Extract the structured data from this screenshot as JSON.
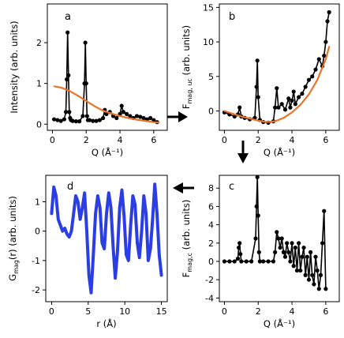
{
  "chart_data": [
    {
      "panel": "a",
      "type": "line",
      "xlabel": "Q (Å⁻¹)",
      "ylabel": "Intensity (arb. units)",
      "xlim": [
        -0.3,
        6.8
      ],
      "ylim": [
        -0.15,
        2.95
      ],
      "xticks": [
        "0",
        "2",
        "4",
        "6"
      ],
      "yticks": [
        "0",
        "1",
        "2"
      ],
      "series": [
        {
          "color": "#000000",
          "marker": true,
          "x": [
            0.1,
            0.3,
            0.5,
            0.7,
            0.8,
            0.85,
            0.9,
            0.95,
            1.0,
            1.05,
            1.1,
            1.2,
            1.4,
            1.6,
            1.8,
            1.9,
            1.95,
            2.0,
            2.05,
            2.1,
            2.2,
            2.4,
            2.6,
            2.8,
            3.0,
            3.1,
            3.2,
            3.4,
            3.6,
            3.8,
            4.0,
            4.1,
            4.2,
            4.4,
            4.6,
            4.8,
            5.0,
            5.2,
            5.4,
            5.6,
            5.8,
            6.0,
            6.2
          ],
          "y": [
            0.12,
            0.1,
            0.08,
            0.12,
            0.3,
            1.1,
            2.25,
            1.2,
            0.3,
            0.15,
            0.1,
            0.08,
            0.07,
            0.07,
            0.2,
            1.0,
            2.0,
            1.0,
            0.2,
            0.1,
            0.1,
            0.08,
            0.08,
            0.1,
            0.15,
            0.35,
            0.25,
            0.3,
            0.2,
            0.15,
            0.25,
            0.45,
            0.3,
            0.25,
            0.2,
            0.15,
            0.2,
            0.18,
            0.15,
            0.12,
            0.15,
            0.1,
            0.05
          ]
        },
        {
          "color": "#e8742a",
          "marker": false,
          "x": [
            0.1,
            0.5,
            1.0,
            1.5,
            2.0,
            2.5,
            3.0,
            3.5,
            4.0,
            4.5,
            5.0,
            5.5,
            6.0,
            6.3
          ],
          "y": [
            0.93,
            0.9,
            0.82,
            0.7,
            0.57,
            0.44,
            0.33,
            0.26,
            0.2,
            0.15,
            0.11,
            0.08,
            0.05,
            0.04
          ]
        }
      ]
    },
    {
      "panel": "b",
      "type": "line",
      "xlabel": "Q (Å⁻¹)",
      "ylabel": "Fmag, uc (arb. units)",
      "ylabel_main": "F",
      "ylabel_sub": "mag, uc",
      "ylabel_rest": " (arb. units)",
      "xlim": [
        -0.3,
        6.8
      ],
      "ylim": [
        -2.8,
        15.5
      ],
      "xticks": [
        "0",
        "2",
        "4",
        "6"
      ],
      "yticks": [
        "0",
        "5",
        "10",
        "15"
      ],
      "series": [
        {
          "color": "#000000",
          "marker": true,
          "x": [
            0.0,
            0.3,
            0.6,
            0.8,
            0.9,
            1.0,
            1.2,
            1.5,
            1.8,
            1.9,
            1.95,
            2.0,
            2.1,
            2.3,
            2.6,
            2.9,
            3.0,
            3.1,
            3.2,
            3.4,
            3.6,
            3.8,
            3.9,
            4.0,
            4.1,
            4.2,
            4.4,
            4.6,
            4.8,
            5.0,
            5.2,
            5.4,
            5.6,
            5.8,
            5.9,
            6.0,
            6.1,
            6.2
          ],
          "y": [
            -0.2,
            -0.5,
            -0.8,
            -0.5,
            0.5,
            -0.8,
            -1.0,
            -1.2,
            -1.0,
            3.5,
            7.3,
            2.0,
            -1.3,
            -1.6,
            -1.7,
            -1.5,
            0.5,
            3.3,
            0.5,
            1.0,
            0.2,
            1.8,
            0.5,
            1.5,
            2.8,
            1.0,
            2.0,
            2.5,
            3.5,
            4.5,
            5.0,
            6.0,
            7.5,
            6.5,
            8.0,
            10.0,
            13.0,
            14.3
          ]
        },
        {
          "color": "#e8742a",
          "marker": false,
          "x": [
            0.0,
            0.5,
            1.0,
            1.5,
            2.0,
            2.5,
            3.0,
            3.5,
            4.0,
            4.5,
            5.0,
            5.5,
            6.0,
            6.2
          ],
          "y": [
            0.0,
            -0.4,
            -0.8,
            -1.1,
            -1.4,
            -1.6,
            -1.5,
            -1.0,
            -0.2,
            0.9,
            2.4,
            4.5,
            7.5,
            9.3
          ]
        }
      ]
    },
    {
      "panel": "c",
      "type": "line",
      "xlabel": "Q (Å⁻¹)",
      "ylabel": "Fmag,c (arb. units)",
      "ylabel_main": "F",
      "ylabel_sub": "mag,c",
      "ylabel_rest": " (arb. units)",
      "xlim": [
        -0.3,
        6.8
      ],
      "ylim": [
        -4.4,
        9.4
      ],
      "xticks": [
        "0",
        "2",
        "4",
        "6"
      ],
      "yticks": [
        "-4",
        "-2",
        "0",
        "2",
        "4",
        "6",
        "8"
      ],
      "series": [
        {
          "color": "#000000",
          "marker": true,
          "x": [
            0.0,
            0.3,
            0.6,
            0.8,
            0.85,
            0.9,
            0.95,
            1.0,
            1.3,
            1.6,
            1.85,
            1.9,
            1.95,
            2.0,
            2.05,
            2.1,
            2.3,
            2.6,
            2.9,
            3.0,
            3.1,
            3.2,
            3.3,
            3.4,
            3.5,
            3.6,
            3.7,
            3.8,
            3.9,
            4.0,
            4.1,
            4.2,
            4.3,
            4.4,
            4.5,
            4.6,
            4.7,
            4.8,
            4.9,
            5.0,
            5.1,
            5.2,
            5.3,
            5.4,
            5.5,
            5.6,
            5.7,
            5.8,
            5.9,
            6.0
          ],
          "y": [
            0.0,
            0.0,
            0.0,
            0.3,
            1.5,
            2.0,
            0.8,
            0.0,
            0.0,
            0.0,
            2.5,
            6.0,
            9.2,
            5.0,
            1.0,
            0.0,
            0.0,
            0.0,
            0.0,
            1.0,
            3.2,
            2.5,
            1.5,
            2.5,
            1.0,
            0.5,
            2.0,
            1.0,
            0.0,
            2.0,
            -0.5,
            1.5,
            -1.0,
            2.0,
            -1.0,
            0.5,
            1.5,
            -1.5,
            0.5,
            -2.0,
            1.0,
            -1.5,
            -2.5,
            0.5,
            -1.0,
            -3.0,
            -1.5,
            2.0,
            5.5,
            -3.0
          ]
        }
      ]
    },
    {
      "panel": "d",
      "type": "line",
      "xlabel": "r (Å)",
      "ylabel": "Gmag(r) (arb. units)",
      "ylabel_main": "G",
      "ylabel_sub": "mag",
      "ylabel_rest": "(r) (arb. units)",
      "xlim": [
        -0.8,
        15.8
      ],
      "ylim": [
        -2.4,
        1.9
      ],
      "xticks": [
        "0",
        "5",
        "10",
        "15"
      ],
      "yticks": [
        "-2",
        "-1",
        "0",
        "1"
      ],
      "series": [
        {
          "color": "#2b3ee6",
          "marker": false,
          "x": [
            0.0,
            0.3,
            0.6,
            0.9,
            1.2,
            1.5,
            1.8,
            2.1,
            2.4,
            2.7,
            3.0,
            3.3,
            3.6,
            3.9,
            4.2,
            4.5,
            4.8,
            5.1,
            5.4,
            5.7,
            6.0,
            6.3,
            6.6,
            6.9,
            7.2,
            7.5,
            7.8,
            8.1,
            8.4,
            8.7,
            9.0,
            9.3,
            9.6,
            9.9,
            10.2,
            10.5,
            10.8,
            11.1,
            11.4,
            11.7,
            12.0,
            12.3,
            12.6,
            12.9,
            13.2,
            13.5,
            13.8,
            14.1,
            14.4,
            14.7,
            15.0
          ],
          "y": [
            0.6,
            1.5,
            1.2,
            0.4,
            0.2,
            0.0,
            0.1,
            -0.1,
            -0.2,
            0.0,
            0.6,
            1.2,
            1.0,
            0.4,
            0.8,
            1.3,
            0.0,
            -1.5,
            -2.1,
            -0.8,
            0.6,
            1.2,
            0.8,
            -0.4,
            -0.6,
            0.6,
            1.3,
            0.8,
            -0.5,
            -1.6,
            -0.7,
            0.8,
            1.4,
            0.5,
            -0.8,
            -1.0,
            0.2,
            1.2,
            0.9,
            -0.4,
            -0.9,
            0.0,
            1.2,
            0.6,
            -1.0,
            -0.6,
            0.4,
            1.6,
            0.6,
            -0.8,
            -1.5
          ]
        }
      ]
    }
  ],
  "panel_labels": [
    "a",
    "b",
    "c",
    "d"
  ]
}
